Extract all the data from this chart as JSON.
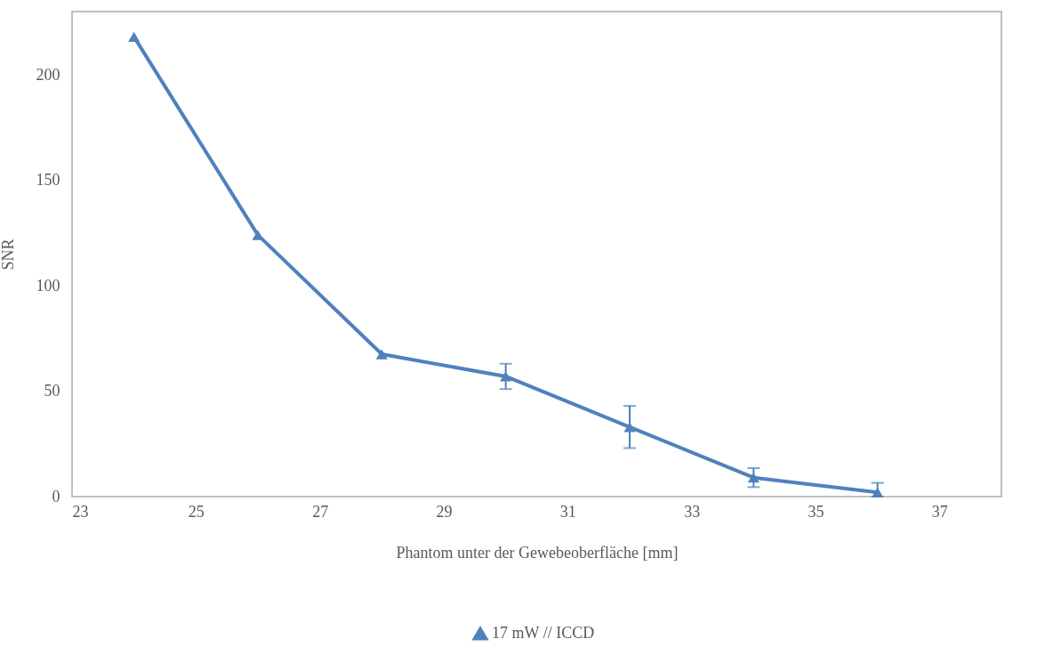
{
  "chart_data": {
    "type": "line",
    "xlabel": "Phantom unter der Gewebeoberfläche [mm]",
    "ylabel": "SNR",
    "x": [
      24,
      26,
      28,
      30,
      32,
      34,
      36
    ],
    "series": [
      {
        "name": "17 mW // ICCD",
        "color": "#4f81bd",
        "values": [
          218,
          124,
          67.5,
          57,
          33,
          9,
          2
        ],
        "errors": [
          null,
          null,
          null,
          6,
          10,
          4.5,
          [
            0,
            6.5
          ]
        ]
      }
    ],
    "xlim": [
      23,
      38
    ],
    "xticks": [
      23,
      25,
      27,
      29,
      31,
      33,
      35,
      37
    ],
    "ylim": [
      0,
      230
    ],
    "yticks": [
      0,
      50,
      100,
      150,
      200
    ],
    "grid": false,
    "legend": "bottom",
    "marker": "triangle",
    "line_style": "solid"
  }
}
